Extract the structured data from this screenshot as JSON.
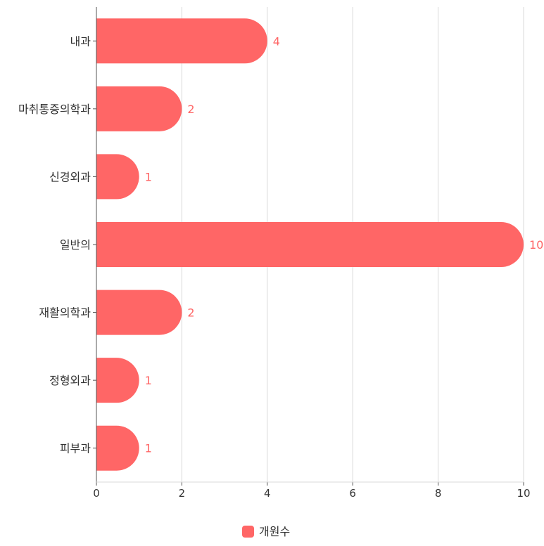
{
  "chart_data": {
    "type": "bar",
    "orientation": "horizontal",
    "categories": [
      "내과",
      "마취통증의학과",
      "신경외과",
      "일반의",
      "재활의학과",
      "정형외과",
      "피부과"
    ],
    "series": [
      {
        "name": "개원수",
        "values": [
          4,
          2,
          1,
          10,
          2,
          1,
          1
        ],
        "color": "#ff6666"
      }
    ],
    "xlim": [
      0,
      10
    ],
    "xticks": [
      0,
      2,
      4,
      6,
      8,
      10
    ],
    "grid": "vertical",
    "legend_position": "bottom-center",
    "data_labels": true
  },
  "colors": {
    "bar": "#ff6666",
    "value_label": "#ff6666",
    "grid": "#d9d9d9",
    "axis": "#555555",
    "text": "#333333"
  }
}
